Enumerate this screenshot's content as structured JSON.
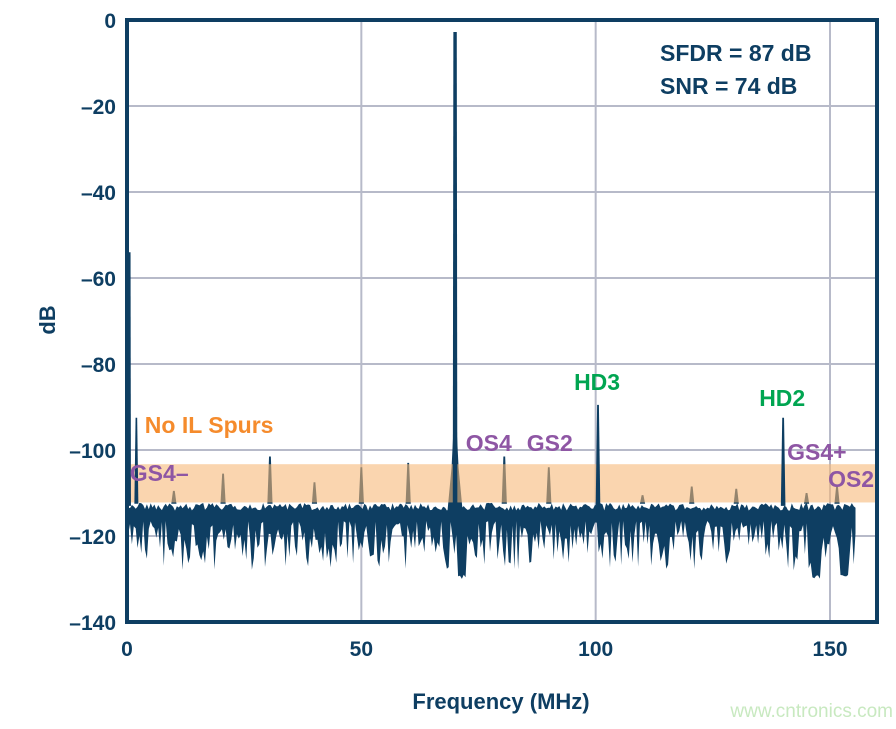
{
  "colors": {
    "navy": "#0e3e62",
    "grid": "#b7bac9",
    "orange": "#f58b2c",
    "purple": "#8e56a4",
    "green": "#00a551",
    "band_fill": "#f6b776",
    "band_opacity": 0.58,
    "watermark": "#c8e9c0"
  },
  "watermark": {
    "text": "www.cntronics.com"
  },
  "chart_data": {
    "type": "line",
    "title": "",
    "xlabel": "Frequency (MHz)",
    "ylabel": "dB",
    "xlim": [
      0,
      160
    ],
    "ylim": [
      -140,
      0
    ],
    "grid": true,
    "x_ticks": [
      0,
      50,
      100,
      150
    ],
    "x_tick_labels": [
      "0",
      "50",
      "100",
      "150"
    ],
    "y_ticks": [
      0,
      -20,
      -40,
      -60,
      -80,
      -100,
      -120,
      -140
    ],
    "y_tick_labels": [
      "0",
      "–20",
      "–40",
      "–60",
      "–80",
      "–100",
      "–120",
      "–140"
    ],
    "annotations": {
      "sfdr": "SFDR = 87 dB",
      "snr": "SNR = 74 dB"
    },
    "fundamental": {
      "mhz": 70,
      "db": -2.8
    },
    "dc_spur": {
      "mhz": 0.5,
      "db": -54
    },
    "low_spur": {
      "mhz": 2,
      "db": -92.5
    },
    "harmonics": [
      {
        "name": "HD3",
        "mhz": 100.5,
        "db": -89.5
      },
      {
        "name": "HD2",
        "mhz": 140.0,
        "db": -92.5
      }
    ],
    "spur_band": {
      "db_top": -103.3,
      "db_bottom": -112.2,
      "label": "No IL Spurs"
    },
    "spurs": [
      {
        "mhz": 10.0,
        "db": -109.5
      },
      {
        "mhz": 20.5,
        "db": -105.5
      },
      {
        "mhz": 30.5,
        "db": -101.5
      },
      {
        "mhz": 40.0,
        "db": -107.5
      },
      {
        "mhz": 50.0,
        "db": -104.0
      },
      {
        "mhz": 60.0,
        "db": -103.0
      },
      {
        "mhz": 80.5,
        "db": -101.5,
        "name": "OS4"
      },
      {
        "mhz": 90.0,
        "db": -104.0,
        "name": "GS2"
      },
      {
        "mhz": 110.0,
        "db": -110.5
      },
      {
        "mhz": 120.5,
        "db": -108.5
      },
      {
        "mhz": 130.0,
        "db": -109.0
      },
      {
        "mhz": 145.0,
        "db": -110.0,
        "name": "GS4+"
      },
      {
        "mhz": 151.5,
        "db": -108.5,
        "name": "OS2"
      }
    ],
    "noise": {
      "db_top": -113,
      "db_mean": -121,
      "db_min": -129,
      "x_start_mhz": 0.25,
      "x_end_mhz": 155.7
    },
    "peak_labels": [
      {
        "text": "No IL Spurs",
        "mhz": 3.8,
        "db": -96.0,
        "color": "orange",
        "anchor": "start"
      },
      {
        "text": "GS4–",
        "mhz": 0.6,
        "db": -107.2,
        "color": "purple",
        "anchor": "start"
      },
      {
        "text": "OS4",
        "mhz": 77.2,
        "db": -100.2,
        "color": "purple",
        "anchor": "middle"
      },
      {
        "text": "GS2",
        "mhz": 90.2,
        "db": -100.2,
        "color": "purple",
        "anchor": "middle"
      },
      {
        "text": "HD3",
        "mhz": 100.3,
        "db": -86.0,
        "color": "green",
        "anchor": "middle"
      },
      {
        "text": "HD2",
        "mhz": 139.8,
        "db": -89.8,
        "color": "green",
        "anchor": "middle"
      },
      {
        "text": "GS4+",
        "mhz": 147.2,
        "db": -102.3,
        "color": "purple",
        "anchor": "middle"
      },
      {
        "text": "OS2",
        "mhz": 154.5,
        "db": -108.6,
        "color": "purple",
        "anchor": "middle"
      }
    ]
  }
}
